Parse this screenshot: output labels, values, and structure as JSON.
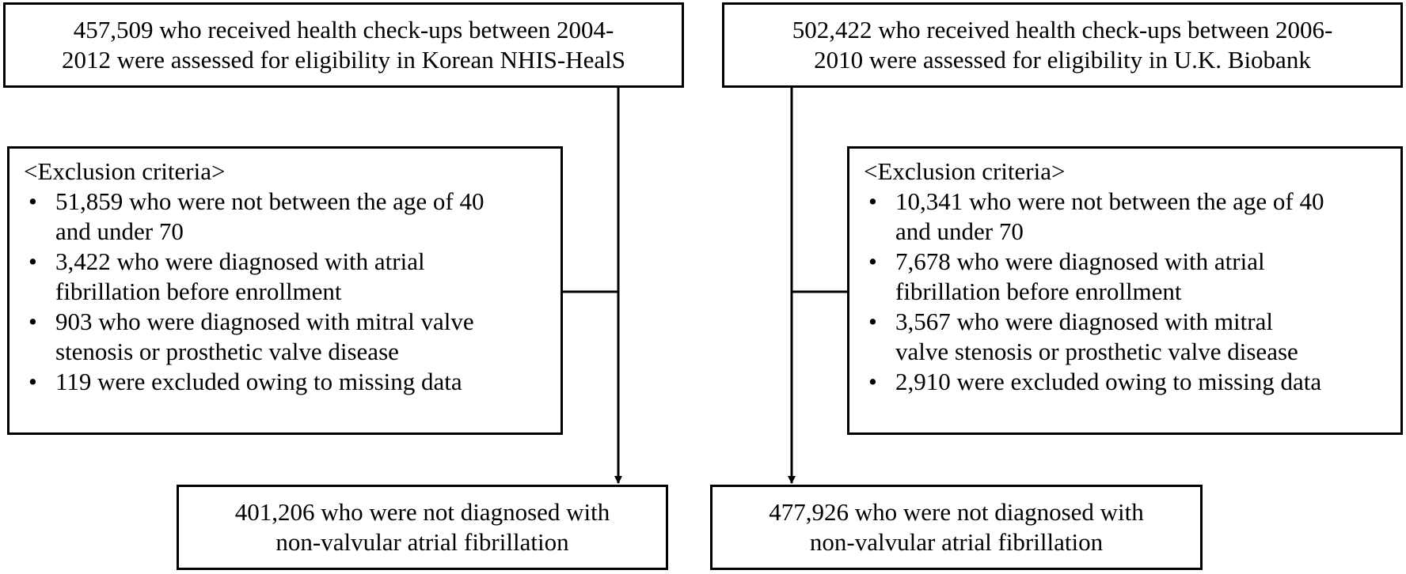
{
  "left": {
    "top_box": [
      "457,509 who received health check-ups between 2004-",
      "2012 were assessed for eligibility in Korean NHIS-HealS"
    ],
    "exclusion": {
      "heading": "<Exclusion criteria>",
      "bullet": "•",
      "items": [
        [
          "51,859 who were not between the age of 40",
          "and under 70"
        ],
        [
          "3,422 who were diagnosed with atrial",
          "fibrillation before enrollment"
        ],
        [
          "903 who were diagnosed with mitral valve",
          "stenosis or prosthetic valve disease"
        ],
        [
          "119 were excluded owing to missing data"
        ]
      ]
    },
    "result_box": [
      "401,206 who were not diagnosed with",
      "non-valvular atrial fibrillation"
    ]
  },
  "right": {
    "top_box": [
      "502,422 who received health check-ups between 2006-",
      "2010 were assessed for eligibility in U.K. Biobank"
    ],
    "exclusion": {
      "heading": "<Exclusion criteria>",
      "bullet": "•",
      "items": [
        [
          "10,341 who were not between the age of 40",
          "and under 70"
        ],
        [
          "7,678 who were diagnosed with atrial",
          "fibrillation before enrollment"
        ],
        [
          "3,567 who were diagnosed with mitral",
          "valve stenosis or prosthetic valve disease"
        ],
        [
          "2,910 were excluded owing to missing data"
        ]
      ]
    },
    "result_box": [
      "477,926 who were not diagnosed with",
      "non-valvular atrial fibrillation"
    ]
  }
}
